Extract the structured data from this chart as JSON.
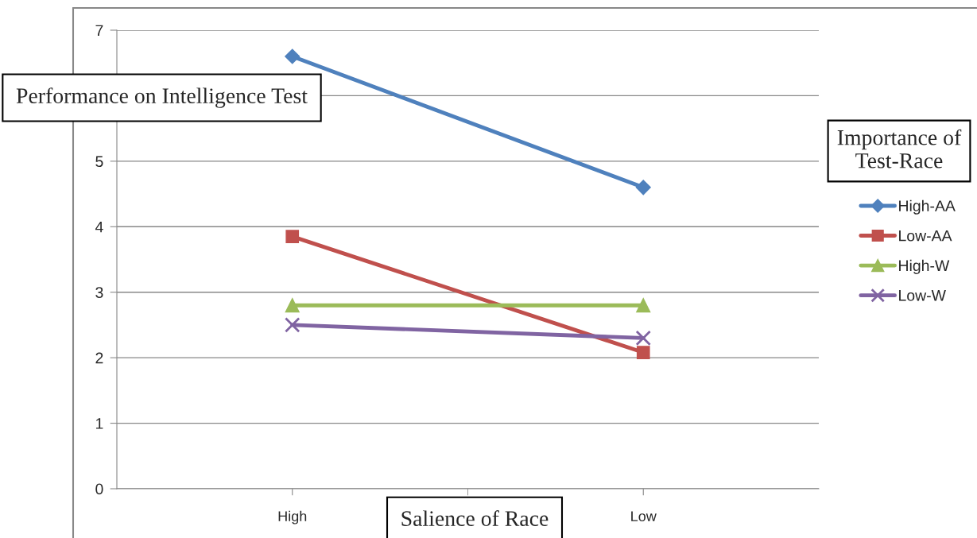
{
  "chart_data": {
    "type": "line",
    "xlabel": "Salience of Race",
    "ylabel": "Performance on Intelligence Test",
    "legend_title": "Importance of Test-Race",
    "categories": [
      "High",
      "Low"
    ],
    "series": [
      {
        "name": "High-AA",
        "color": "#4f81bd",
        "marker": "diamond",
        "values": [
          6.6,
          4.6
        ]
      },
      {
        "name": "Low-AA",
        "color": "#c0504d",
        "marker": "square",
        "values": [
          3.85,
          2.08
        ]
      },
      {
        "name": "High-W",
        "color": "#9bbb59",
        "marker": "triangle",
        "values": [
          2.8,
          2.8
        ]
      },
      {
        "name": "Low-W",
        "color": "#8064a2",
        "marker": "cross",
        "values": [
          2.5,
          2.3
        ]
      }
    ],
    "ylim": [
      0,
      7
    ],
    "yticks": [
      0,
      1,
      2,
      3,
      4,
      5,
      {
        "value": 6,
        "label": null
      },
      7
    ],
    "grid": "y",
    "legend": "right"
  }
}
